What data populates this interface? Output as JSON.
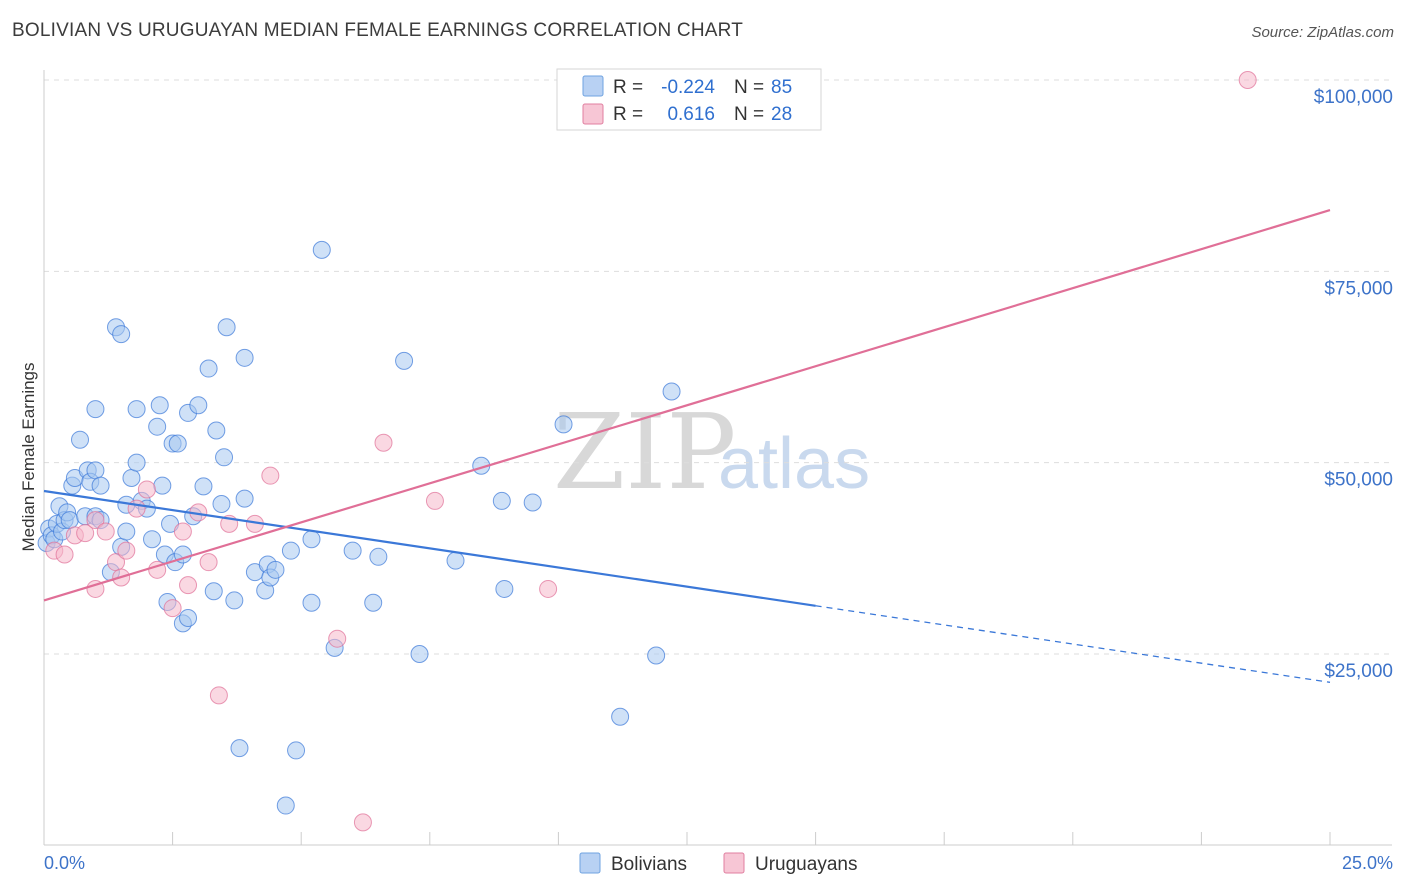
{
  "header": {
    "title": "BOLIVIAN VS URUGUAYAN MEDIAN FEMALE EARNINGS CORRELATION CHART",
    "source": "Source: ZipAtlas.com"
  },
  "watermark": {
    "zip": "ZIP",
    "atlas": "atlas"
  },
  "legend": {
    "rows": [
      {
        "r_label": "R =",
        "r_value": "-0.224",
        "n_label": "N =",
        "n_value": "85",
        "color": "#6fa3e0",
        "fill": "#b8d1f3"
      },
      {
        "r_label": "R =",
        "r_value": "0.616",
        "n_label": "N =",
        "n_value": "28",
        "color": "#e07fa0",
        "fill": "#f7c6d5"
      }
    ]
  },
  "bottom_legend": [
    {
      "label": "Bolivians",
      "color": "#6fa3e0",
      "fill": "#b8d1f3"
    },
    {
      "label": "Uruguayans",
      "color": "#e07fa0",
      "fill": "#f7c6d5"
    }
  ],
  "chart_data": {
    "type": "scatter",
    "title": "BOLIVIAN VS URUGUAYAN MEDIAN FEMALE EARNINGS CORRELATION CHART",
    "xlabel": "",
    "ylabel": "Median Female Earnings",
    "xlim": [
      0,
      25
    ],
    "ylim": [
      0,
      102000
    ],
    "x_tick_labels": [
      "0.0%",
      "25.0%"
    ],
    "y_ticks": [
      25000,
      50000,
      75000,
      100000
    ],
    "y_tick_labels": [
      "$25,000",
      "$50,000",
      "$75,000",
      "$100,000"
    ],
    "grid": true,
    "series": [
      {
        "name": "Bolivians",
        "color": "#3b78d8",
        "fill": "#a8c8f0",
        "points": [
          [
            0.05,
            39.5
          ],
          [
            0.1,
            41.4
          ],
          [
            0.15,
            40.5
          ],
          [
            0.2,
            40.0
          ],
          [
            0.25,
            42.0
          ],
          [
            0.3,
            44.3
          ],
          [
            0.35,
            41.0
          ],
          [
            0.4,
            42.5
          ],
          [
            0.45,
            43.5
          ],
          [
            0.5,
            42.5
          ],
          [
            0.55,
            47.0
          ],
          [
            0.6,
            48.0
          ],
          [
            0.7,
            53.0
          ],
          [
            0.8,
            43.0
          ],
          [
            0.85,
            49.0
          ],
          [
            0.9,
            47.5
          ],
          [
            1.0,
            49.0
          ],
          [
            1.0,
            57.0
          ],
          [
            1.0,
            43.0
          ],
          [
            1.1,
            47.0
          ],
          [
            1.1,
            42.5
          ],
          [
            1.3,
            35.7
          ],
          [
            1.4,
            67.7
          ],
          [
            1.5,
            66.8
          ],
          [
            1.5,
            39.0
          ],
          [
            1.6,
            41.0
          ],
          [
            1.6,
            44.5
          ],
          [
            1.7,
            48.0
          ],
          [
            1.8,
            57.0
          ],
          [
            1.8,
            50.0
          ],
          [
            1.9,
            45.0
          ],
          [
            2.0,
            44.0
          ],
          [
            2.1,
            40.0
          ],
          [
            2.2,
            54.7
          ],
          [
            2.25,
            57.5
          ],
          [
            2.3,
            47.0
          ],
          [
            2.35,
            38.0
          ],
          [
            2.4,
            31.8
          ],
          [
            2.45,
            42.0
          ],
          [
            2.5,
            52.5
          ],
          [
            2.55,
            37.0
          ],
          [
            2.6,
            52.5
          ],
          [
            2.7,
            38.0
          ],
          [
            2.7,
            29.0
          ],
          [
            2.8,
            29.7
          ],
          [
            2.8,
            56.5
          ],
          [
            2.9,
            43.0
          ],
          [
            3.0,
            57.5
          ],
          [
            3.1,
            46.9
          ],
          [
            3.2,
            62.3
          ],
          [
            3.3,
            33.2
          ],
          [
            3.35,
            54.2
          ],
          [
            3.45,
            44.6
          ],
          [
            3.5,
            50.7
          ],
          [
            3.55,
            67.7
          ],
          [
            3.7,
            32.0
          ],
          [
            3.8,
            12.7
          ],
          [
            3.9,
            63.7
          ],
          [
            3.9,
            45.3
          ],
          [
            4.1,
            35.7
          ],
          [
            4.3,
            33.3
          ],
          [
            4.35,
            36.7
          ],
          [
            4.4,
            35.0
          ],
          [
            4.5,
            36.0
          ],
          [
            4.7,
            5.2
          ],
          [
            4.8,
            38.5
          ],
          [
            4.9,
            12.4
          ],
          [
            5.2,
            40.0
          ],
          [
            5.2,
            31.7
          ],
          [
            5.4,
            77.8
          ],
          [
            5.65,
            25.8
          ],
          [
            6.0,
            38.5
          ],
          [
            6.4,
            31.7
          ],
          [
            6.5,
            37.7
          ],
          [
            7.0,
            63.3
          ],
          [
            7.3,
            25.0
          ],
          [
            8.0,
            37.2
          ],
          [
            8.5,
            49.6
          ],
          [
            8.9,
            45.0
          ],
          [
            8.95,
            33.5
          ],
          [
            9.5,
            44.8
          ],
          [
            10.1,
            55.0
          ],
          [
            11.2,
            16.8
          ],
          [
            11.9,
            24.8
          ],
          [
            12.2,
            59.3
          ]
        ]
      },
      {
        "name": "Uruguayans",
        "color": "#e06f97",
        "fill": "#f5b8cb",
        "points": [
          [
            0.2,
            38.5
          ],
          [
            0.4,
            38.0
          ],
          [
            0.6,
            40.5
          ],
          [
            0.8,
            40.8
          ],
          [
            1.0,
            42.5
          ],
          [
            1.0,
            33.5
          ],
          [
            1.2,
            41.0
          ],
          [
            1.4,
            37.0
          ],
          [
            1.5,
            35.0
          ],
          [
            1.6,
            38.5
          ],
          [
            1.8,
            44.0
          ],
          [
            2.0,
            46.5
          ],
          [
            2.2,
            36.0
          ],
          [
            2.5,
            31.0
          ],
          [
            2.7,
            41.0
          ],
          [
            2.8,
            34.0
          ],
          [
            3.0,
            43.5
          ],
          [
            3.2,
            37.0
          ],
          [
            3.4,
            19.6
          ],
          [
            3.6,
            42.0
          ],
          [
            4.1,
            42.0
          ],
          [
            4.4,
            48.3
          ],
          [
            5.7,
            27.0
          ],
          [
            6.2,
            3.0
          ],
          [
            6.6,
            52.6
          ],
          [
            7.6,
            45.0
          ],
          [
            9.8,
            33.5
          ],
          [
            23.4,
            100.0
          ]
        ]
      }
    ],
    "trend_lines": [
      {
        "series": "Bolivians",
        "solid": [
          [
            0,
            46.3
          ],
          [
            15,
            31.3
          ]
        ],
        "dashed": [
          [
            15,
            31.3
          ],
          [
            25,
            21.3
          ]
        ]
      },
      {
        "series": "Uruguayans",
        "solid": [
          [
            0,
            32.0
          ],
          [
            25,
            83.0
          ]
        ]
      }
    ]
  }
}
